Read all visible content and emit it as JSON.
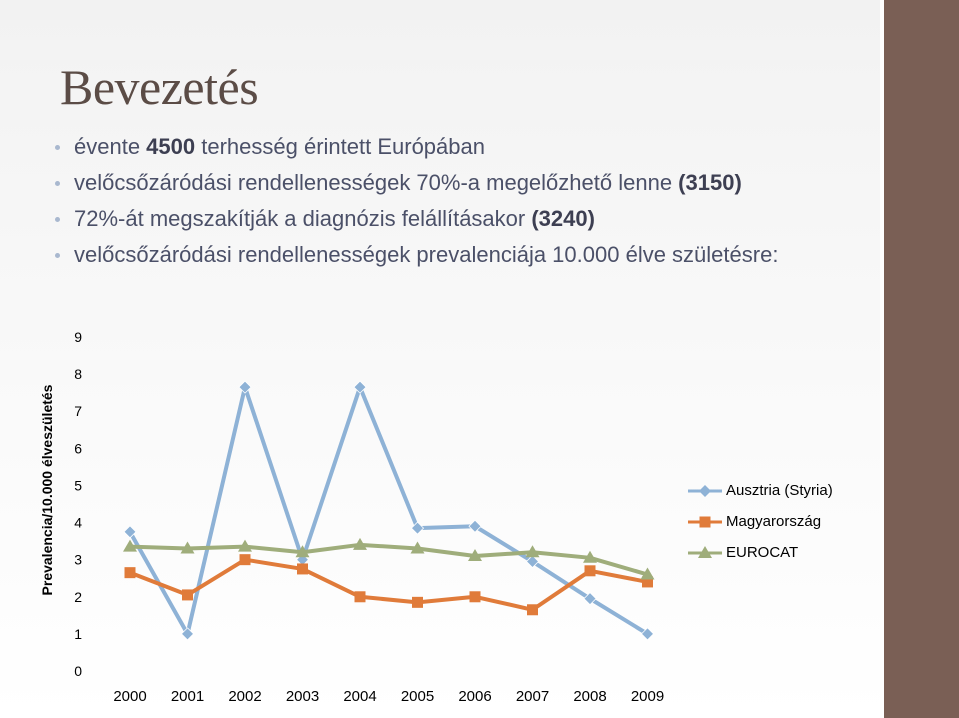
{
  "slide": {
    "title": "Bevezetés",
    "bullets": [
      {
        "parts": [
          {
            "text": "évente ",
            "bold": false
          },
          {
            "text": "4500",
            "bold": true
          },
          {
            "text": " terhesség érintett Európában",
            "bold": false
          }
        ]
      },
      {
        "parts": [
          {
            "text": "velőcsőzáródási rendellenességek 70%-a megelőzhető lenne ",
            "bold": false
          },
          {
            "text": "(3150)",
            "bold": true
          }
        ]
      },
      {
        "parts": [
          {
            "text": "72%-át megszakítják a diagnózis felállításakor ",
            "bold": false
          },
          {
            "text": "(3240)",
            "bold": true
          }
        ]
      },
      {
        "parts": [
          {
            "text": "velőcsőzáródási rendellenességek prevalenciája 10.000 élve születésre:",
            "bold": false
          }
        ]
      }
    ]
  },
  "chart_data": {
    "type": "line",
    "ylabel": "Prevalencia/10.000 élveszületés",
    "xlabel": "",
    "x": [
      "2000",
      "2001",
      "2002",
      "2003",
      "2004",
      "2005",
      "2006",
      "2007",
      "2008",
      "2009"
    ],
    "ylim": [
      0,
      9
    ],
    "yticks": [
      "0",
      "1",
      "2",
      "3",
      "4",
      "5",
      "6",
      "7",
      "8",
      "9"
    ],
    "grid": false,
    "legend_position": "right",
    "series": [
      {
        "name": "Ausztria (Styria)",
        "marker": "diamond",
        "color": "#8eb2d6",
        "values": [
          3.75,
          1.0,
          7.65,
          3.0,
          7.65,
          3.85,
          3.9,
          2.95,
          1.95,
          1.0
        ]
      },
      {
        "name": "Magyarország",
        "marker": "square",
        "color": "#e07b3a",
        "values": [
          2.65,
          2.05,
          3.0,
          2.75,
          2.0,
          1.85,
          2.0,
          1.65,
          2.7,
          2.4
        ]
      },
      {
        "name": "EUROCAT",
        "marker": "triangle",
        "color": "#9fad7b",
        "values": [
          3.35,
          3.3,
          3.35,
          3.2,
          3.4,
          3.3,
          3.1,
          3.2,
          3.05,
          2.6
        ]
      }
    ]
  }
}
